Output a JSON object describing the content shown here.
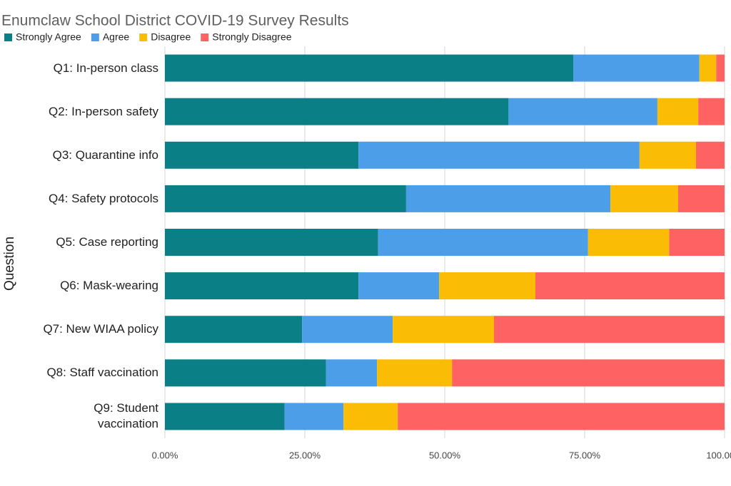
{
  "chart_data": {
    "type": "stacked-bar-horizontal",
    "title": "Enumclaw School District COVID-19 Survey Results",
    "y_label": "Question",
    "categories": [
      "Q1: In-person class",
      "Q2: In-person safety",
      "Q3: Quarantine info",
      "Q4: Safety protocols",
      "Q5: Case reporting",
      "Q6: Mask-wearing",
      "Q7: New WIAA policy",
      "Q8: Staff vaccination",
      "Q9: Student vaccination"
    ],
    "series": [
      {
        "name": "Strongly Agree",
        "color": "#0b7f86",
        "values": [
          73.0,
          61.4,
          34.6,
          43.1,
          38.1,
          34.6,
          24.5,
          28.8,
          21.4
        ]
      },
      {
        "name": "Agree",
        "color": "#4d9ee9",
        "values": [
          22.5,
          26.6,
          50.2,
          36.5,
          37.5,
          14.4,
          16.2,
          9.1,
          10.5
        ]
      },
      {
        "name": "Disagree",
        "color": "#fbbc05",
        "values": [
          3.0,
          7.3,
          10.1,
          12.1,
          14.5,
          17.2,
          18.1,
          13.4,
          9.7
        ]
      },
      {
        "name": "Strongly Disagree",
        "color": "#fe6262",
        "values": [
          1.5,
          4.7,
          5.1,
          8.3,
          9.9,
          33.8,
          41.2,
          48.7,
          58.4
        ]
      }
    ],
    "xlim": [
      0,
      100
    ],
    "xticks": [
      {
        "value": 0,
        "label": "0.00%"
      },
      {
        "value": 25,
        "label": "25.00%"
      },
      {
        "value": 50,
        "label": "50.00%"
      },
      {
        "value": 75,
        "label": "75.00%"
      },
      {
        "value": 100,
        "label": "100.00%"
      }
    ],
    "grid": true
  }
}
